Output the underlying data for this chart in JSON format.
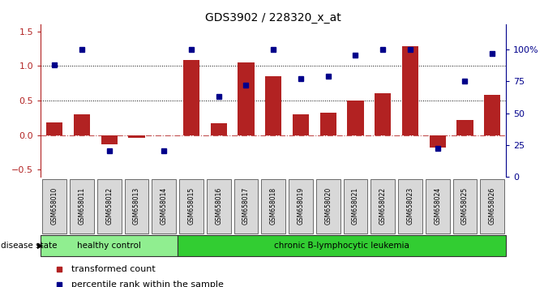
{
  "title": "GDS3902 / 228320_x_at",
  "samples": [
    "GSM658010",
    "GSM658011",
    "GSM658012",
    "GSM658013",
    "GSM658014",
    "GSM658015",
    "GSM658016",
    "GSM658017",
    "GSM658018",
    "GSM658019",
    "GSM658020",
    "GSM658021",
    "GSM658022",
    "GSM658023",
    "GSM658024",
    "GSM658025",
    "GSM658026"
  ],
  "bar_values": [
    0.18,
    0.3,
    -0.13,
    -0.04,
    -0.01,
    1.08,
    0.17,
    1.05,
    0.85,
    0.3,
    0.32,
    0.5,
    0.6,
    1.28,
    -0.18,
    0.22,
    0.58
  ],
  "dot_pct": [
    88,
    100,
    20,
    null,
    20,
    100,
    63,
    72,
    100,
    77,
    79,
    96,
    100,
    100,
    22,
    75,
    97
  ],
  "healthy_count": 5,
  "healthy_label": "healthy control",
  "disease_label": "chronic B-lymphocytic leukemia",
  "disease_state_label": "disease state",
  "bar_color": "#b22222",
  "dot_color": "#00008b",
  "healthy_color": "#90ee90",
  "disease_color": "#32cd32",
  "left_ylim": [
    -0.6,
    1.6
  ],
  "left_yticks": [
    -0.5,
    0.0,
    0.5,
    1.0,
    1.5
  ],
  "right_ylim": [
    0,
    120
  ],
  "right_yticks": [
    0,
    25,
    50,
    75,
    100
  ],
  "right_ytick_labels": [
    "0",
    "25",
    "50",
    "75",
    "100%"
  ],
  "hlines_dotted": [
    0.5,
    1.0
  ],
  "legend_bar_label": "transformed count",
  "legend_dot_label": "percentile rank within the sample"
}
